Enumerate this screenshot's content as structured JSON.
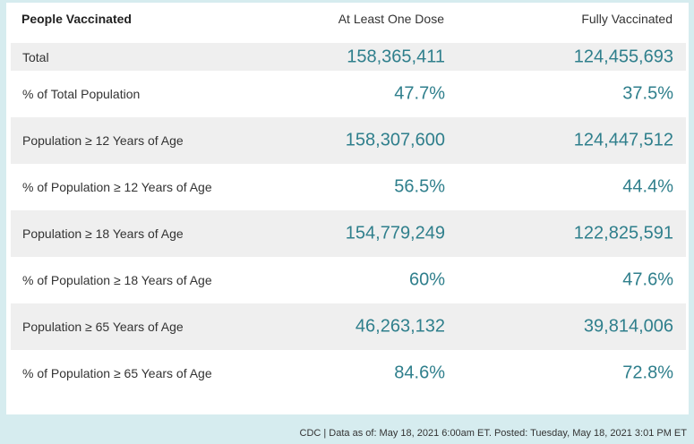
{
  "table": {
    "headers": [
      "People Vaccinated",
      "At Least One Dose",
      "Fully Vaccinated"
    ],
    "rows": [
      {
        "label": "Total",
        "at_least_one_dose": "158,365,411",
        "fully_vaccinated": "124,455,693"
      },
      {
        "label": "% of Total Population",
        "at_least_one_dose": "47.7%",
        "fully_vaccinated": "37.5%"
      },
      {
        "label": "Population ≥ 12 Years of Age",
        "at_least_one_dose": "158,307,600",
        "fully_vaccinated": "124,447,512"
      },
      {
        "label": "% of Population ≥ 12 Years of Age",
        "at_least_one_dose": "56.5%",
        "fully_vaccinated": "44.4%"
      },
      {
        "label": "Population ≥ 18 Years of Age",
        "at_least_one_dose": "154,779,249",
        "fully_vaccinated": "122,825,591"
      },
      {
        "label": "% of Population ≥ 18 Years of Age",
        "at_least_one_dose": "60%",
        "fully_vaccinated": "47.6%"
      },
      {
        "label": "Population ≥ 65 Years of Age",
        "at_least_one_dose": "46,263,132",
        "fully_vaccinated": "39,814,006"
      },
      {
        "label": "% of Population ≥ 65 Years of Age",
        "at_least_one_dose": "84.6%",
        "fully_vaccinated": "72.8%"
      }
    ]
  },
  "footer": {
    "text": "CDC | Data as of: May 18, 2021 6:00am ET. Posted: Tuesday, May 18, 2021 3:01 PM ET"
  },
  "colors": {
    "background": "#d6ecef",
    "value_text": "#2f7f8c",
    "row_shade": "#efefef"
  }
}
